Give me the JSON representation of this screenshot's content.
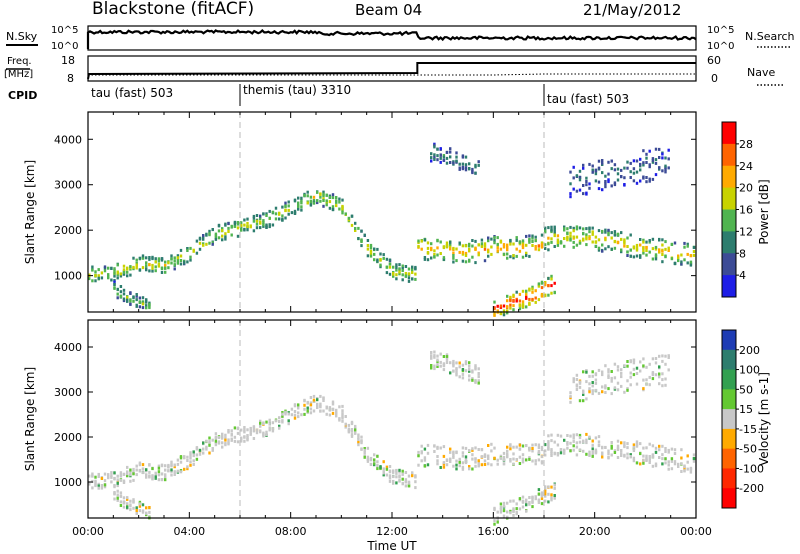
{
  "header": {
    "station": "Blackstone (fitACF)",
    "beam": "Beam 04",
    "date": "21/May/2012"
  },
  "side_labels": {
    "nsky": "N.Sky",
    "nsearch": "N.Search",
    "freq_line1": "Freq.",
    "freq_line2": "[MHz]",
    "nave": "Nave",
    "cpid": "CPID"
  },
  "noise_panel": {
    "left_ticks": [
      "10^5",
      "10^0"
    ],
    "right_ticks": [
      "10^5",
      "10^0"
    ]
  },
  "freq_panel": {
    "left_ticks": [
      "18",
      "8"
    ],
    "right_ticks": [
      "60",
      "0"
    ]
  },
  "cpid_segments": [
    {
      "label": "tau (fast) 503",
      "start_hour": 0
    },
    {
      "label": "themis (tau) 3310",
      "start_hour": 6
    },
    {
      "label": "tau (fast) 503",
      "start_hour": 18
    }
  ],
  "power_colorbar": {
    "label": "Power [dB]",
    "ticks": [
      "28",
      "24",
      "20",
      "16",
      "12",
      "8",
      "4"
    ],
    "colors": [
      "#ff0000",
      "#ff6400",
      "#ffaa00",
      "#c8d200",
      "#50b450",
      "#2d7d6e",
      "#3c4b96",
      "#1e1ee6"
    ]
  },
  "velocity_colorbar": {
    "label": "Velocity [m s-1]",
    "ticks": [
      "200",
      "100",
      "50",
      "15",
      "-15",
      "-50",
      "-100",
      "-200"
    ],
    "colors": [
      "#1e3cb4",
      "#2d7d6e",
      "#32a050",
      "#64c832",
      "#c8c8c8",
      "#ffaa00",
      "#ff6400",
      "#ff2800",
      "#ff0000"
    ]
  },
  "chart_data": [
    {
      "type": "heatmap",
      "name": "power",
      "xlabel": "Time UT",
      "ylabel": "Slant Range [km]",
      "xlim": [
        0,
        24
      ],
      "ylim": [
        200,
        4600
      ],
      "yticks": [
        "1000",
        "2000",
        "3000",
        "4000"
      ],
      "xticks": [
        "00:00",
        "04:00",
        "08:00",
        "12:00",
        "16:00",
        "20:00",
        "00:00"
      ],
      "echo_bands": [
        {
          "t": [
            0,
            1,
            2,
            3,
            4,
            5,
            6,
            7,
            8,
            9,
            10,
            11,
            12,
            13
          ],
          "range": [
            1000,
            1050,
            1250,
            1200,
            1500,
            1900,
            2050,
            2200,
            2500,
            2750,
            2500,
            1600,
            1100,
            1000
          ],
          "width": 180,
          "power": 18
        },
        {
          "t": [
            13,
            14,
            15,
            16,
            17,
            18
          ],
          "range": [
            1600,
            1550,
            1500,
            1600,
            1600,
            1650
          ],
          "width": 250,
          "power": 22
        },
        {
          "t": [
            18,
            19,
            20,
            21,
            22,
            23,
            24
          ],
          "range": [
            1800,
            1850,
            1800,
            1700,
            1600,
            1500,
            1400
          ],
          "width": 250,
          "power": 20
        },
        {
          "t": [
            16,
            16.5,
            17,
            17.5,
            18,
            18.5
          ],
          "range": [
            250,
            350,
            450,
            550,
            700,
            850
          ],
          "width": 200,
          "power": 30
        },
        {
          "t": [
            1,
            1.5,
            2,
            2.5
          ],
          "range": [
            700,
            500,
            400,
            300
          ],
          "width": 150,
          "power": 14
        },
        {
          "t": [
            13.5,
            14,
            14.5,
            15,
            15.5
          ],
          "range": [
            3700,
            3650,
            3550,
            3450,
            3350
          ],
          "width": 200,
          "power": 10
        },
        {
          "t": [
            19,
            20,
            21,
            22,
            23
          ],
          "range": [
            3000,
            3200,
            3300,
            3400,
            3500
          ],
          "width": 350,
          "power": 8
        }
      ]
    },
    {
      "type": "heatmap",
      "name": "velocity",
      "xlabel": "Time UT",
      "ylabel": "Slant Range [km]",
      "xlim": [
        0,
        24
      ],
      "ylim": [
        200,
        4600
      ],
      "yticks": [
        "1000",
        "2000",
        "3000",
        "4000"
      ],
      "xticks": [
        "00:00",
        "04:00",
        "08:00",
        "12:00",
        "16:00",
        "20:00",
        "00:00"
      ],
      "echo_bands": [
        {
          "t": [
            0,
            1,
            2,
            3,
            4,
            5,
            6,
            7,
            8,
            9,
            10,
            11,
            12,
            13
          ],
          "range": [
            1000,
            1050,
            1250,
            1200,
            1500,
            1900,
            2050,
            2200,
            2500,
            2750,
            2500,
            1600,
            1100,
            1000
          ],
          "width": 180,
          "velocity": 0
        },
        {
          "t": [
            13,
            14,
            15,
            16,
            17,
            18
          ],
          "range": [
            1600,
            1550,
            1500,
            1600,
            1600,
            1650
          ],
          "width": 250,
          "velocity": 0
        },
        {
          "t": [
            18,
            19,
            20,
            21,
            22,
            23,
            24
          ],
          "range": [
            1800,
            1850,
            1800,
            1700,
            1600,
            1500,
            1400
          ],
          "width": 250,
          "velocity": 0
        },
        {
          "t": [
            16,
            16.5,
            17,
            17.5,
            18,
            18.5
          ],
          "range": [
            250,
            350,
            450,
            550,
            700,
            850
          ],
          "width": 200,
          "velocity": 0
        },
        {
          "t": [
            1,
            1.5,
            2,
            2.5
          ],
          "range": [
            700,
            500,
            400,
            300
          ],
          "width": 150,
          "velocity": 0
        },
        {
          "t": [
            13.5,
            14,
            14.5,
            15,
            15.5
          ],
          "range": [
            3700,
            3650,
            3550,
            3450,
            3350
          ],
          "width": 200,
          "velocity": 0
        },
        {
          "t": [
            19,
            20,
            21,
            22,
            23
          ],
          "range": [
            3000,
            3200,
            3300,
            3400,
            3500
          ],
          "width": 350,
          "velocity": 0
        }
      ]
    }
  ]
}
